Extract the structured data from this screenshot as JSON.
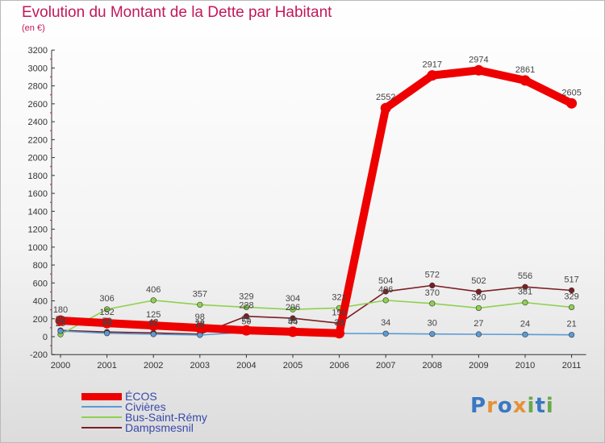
{
  "chart_data": {
    "type": "line",
    "title": "Evolution du Montant de la Dette par Habitant",
    "subtitle": "(en €)",
    "xlabel": "",
    "ylabel": "",
    "ylim": [
      -200,
      3200
    ],
    "yticks": [
      -200,
      0,
      200,
      400,
      600,
      800,
      1000,
      1200,
      1400,
      1600,
      1800,
      2000,
      2200,
      2400,
      2600,
      2800,
      3000,
      3200
    ],
    "categories": [
      "2000",
      "2001",
      "2002",
      "2003",
      "2004",
      "2005",
      "2006",
      "2007",
      "2008",
      "2009",
      "2010",
      "2011"
    ],
    "grid": false,
    "legend_position": "bottom-left",
    "series": [
      {
        "name": "Dampsmesnil",
        "color": "#7b1f24",
        "values": [
          70,
          52,
          42,
          28,
          228,
          206,
          150,
          504,
          572,
          502,
          556,
          517
        ],
        "labels": [
          "70",
          "52",
          "42",
          "28",
          "228",
          "206",
          "150",
          "504",
          "572",
          "502",
          "556",
          "517"
        ]
      },
      {
        "name": "Bus-Saint-Rémy",
        "color": "#8ed14e",
        "values": [
          25,
          306,
          406,
          357,
          329,
          304,
          321,
          406,
          370,
          320,
          381,
          329
        ],
        "labels": [
          "25",
          "306",
          "406",
          "357",
          "329",
          "304",
          "321",
          "406",
          "370",
          "320",
          "381",
          "329"
        ]
      },
      {
        "name": "Civières",
        "color": "#5b9bd5",
        "values": [
          63,
          38,
          27,
          18,
          50,
          44,
          36,
          34,
          30,
          27,
          24,
          21
        ],
        "labels": [
          "63",
          "38",
          "27",
          "18",
          "50",
          "44",
          "36",
          "34",
          "30",
          "27",
          "24",
          "21"
        ]
      },
      {
        "name": "ÉCOS",
        "color": "#ee0000",
        "values": [
          180,
          152,
          125,
          98,
          71,
          55,
          38,
          2552,
          2917,
          2974,
          2861,
          2605
        ],
        "labels": [
          "180",
          "152",
          "125",
          "98",
          "71",
          "55",
          "38",
          "2552",
          "2917",
          "2974",
          "2861",
          "2605"
        ]
      }
    ],
    "legend": [
      {
        "name": "ÉCOS",
        "color": "#ee0000"
      },
      {
        "name": "Civières",
        "color": "#5b9bd5"
      },
      {
        "name": "Bus-Saint-Rémy",
        "color": "#8ed14e"
      },
      {
        "name": "Dampsmesnil",
        "color": "#7b1f24"
      }
    ]
  },
  "logo": {
    "letters": [
      "P",
      "r",
      "o",
      "x",
      "i",
      "t",
      "i"
    ],
    "colors": [
      "#3a78c2",
      "#e69138",
      "#3a78c2",
      "#e69138",
      "#6aa84f",
      "#3a78c2",
      "#6aa84f"
    ]
  }
}
